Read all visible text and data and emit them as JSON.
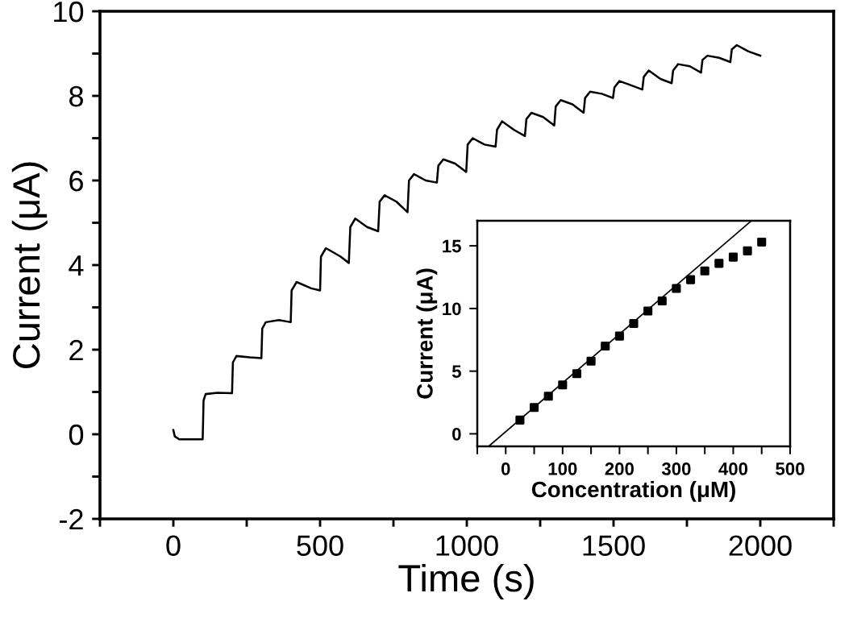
{
  "chart_data": [
    {
      "type": "line",
      "xlabel": "Time (s)",
      "ylabel": "Current (μA)",
      "xlim": [
        -250,
        2250
      ],
      "ylim": [
        -2,
        10
      ],
      "xticks": [
        {
          "value": -250,
          "label": null
        },
        0,
        {
          "value": 250,
          "label": null
        },
        500,
        {
          "value": 750,
          "label": null
        },
        1000,
        {
          "value": 1250,
          "label": null
        },
        1500,
        {
          "value": 1750,
          "label": null
        },
        2000,
        {
          "value": 2250,
          "label": null
        }
      ],
      "yticks": [
        -2,
        {
          "value": -1,
          "label": null
        },
        0,
        {
          "value": 1,
          "label": null
        },
        2,
        {
          "value": 3,
          "label": null
        },
        4,
        {
          "value": 5,
          "label": null
        },
        6,
        {
          "value": 7,
          "label": null
        },
        8,
        {
          "value": 9,
          "label": null
        },
        10
      ],
      "series": [
        {
          "color": "#000000",
          "x": [
            0,
            5,
            20,
            100,
            103,
            110,
            150,
            200,
            203,
            215,
            260,
            300,
            303,
            315,
            360,
            400,
            403,
            420,
            470,
            500,
            503,
            520,
            570,
            598,
            603,
            620,
            660,
            698,
            703,
            720,
            760,
            798,
            803,
            820,
            860,
            898,
            903,
            920,
            960,
            998,
            1003,
            1020,
            1060,
            1098,
            1103,
            1120,
            1160,
            1198,
            1203,
            1220,
            1260,
            1298,
            1303,
            1320,
            1360,
            1398,
            1403,
            1420,
            1460,
            1498,
            1503,
            1520,
            1560,
            1598,
            1603,
            1620,
            1660,
            1698,
            1703,
            1720,
            1760,
            1798,
            1803,
            1820,
            1860,
            1898,
            1903,
            1920,
            1960,
            2000
          ],
          "values": [
            0.1,
            -0.05,
            -0.12,
            -0.12,
            0.8,
            0.95,
            0.98,
            0.97,
            1.7,
            1.85,
            1.82,
            1.8,
            2.5,
            2.65,
            2.7,
            2.65,
            3.4,
            3.6,
            3.45,
            3.4,
            4.2,
            4.4,
            4.2,
            4.05,
            4.9,
            5.1,
            4.9,
            4.8,
            5.5,
            5.65,
            5.5,
            5.25,
            6.0,
            6.15,
            6.0,
            5.95,
            6.35,
            6.5,
            6.4,
            6.2,
            6.85,
            7.0,
            6.85,
            6.8,
            7.2,
            7.4,
            7.2,
            7.05,
            7.45,
            7.6,
            7.5,
            7.3,
            7.75,
            7.9,
            7.8,
            7.6,
            7.95,
            8.1,
            8.05,
            7.95,
            8.2,
            8.35,
            8.25,
            8.15,
            8.45,
            8.6,
            8.4,
            8.3,
            8.6,
            8.75,
            8.7,
            8.55,
            8.85,
            8.95,
            8.9,
            8.8,
            9.1,
            9.2,
            9.05,
            8.95
          ]
        }
      ]
    },
    {
      "type": "scatter",
      "xlabel": "Concentration (μM)",
      "ylabel": "Current (μA)",
      "xlim": [
        -50,
        500
      ],
      "ylim": [
        -1,
        17
      ],
      "xticks": [
        {
          "value": -50,
          "label": null
        },
        0,
        {
          "value": 50,
          "label": null
        },
        100,
        {
          "value": 150,
          "label": null
        },
        200,
        {
          "value": 250,
          "label": null
        },
        300,
        {
          "value": 350,
          "label": null
        },
        400,
        {
          "value": 450,
          "label": null
        },
        500
      ],
      "yticks": [
        0,
        5,
        10,
        15
      ],
      "series": [
        {
          "type": "scatter",
          "marker": "square",
          "color": "#000000",
          "x": [
            25,
            50,
            75,
            100,
            125,
            150,
            175,
            200,
            225,
            250,
            275,
            300,
            325,
            350,
            375,
            400,
            425,
            450
          ],
          "values": [
            1.1,
            2.1,
            3.0,
            3.9,
            4.8,
            5.8,
            7.0,
            7.8,
            8.8,
            9.8,
            10.6,
            11.6,
            12.3,
            13.0,
            13.6,
            14.1,
            14.6,
            15.3
          ]
        },
        {
          "type": "line",
          "color": "#000000",
          "x": [
            -30,
            432
          ],
          "values": [
            -1,
            17
          ]
        }
      ]
    }
  ]
}
